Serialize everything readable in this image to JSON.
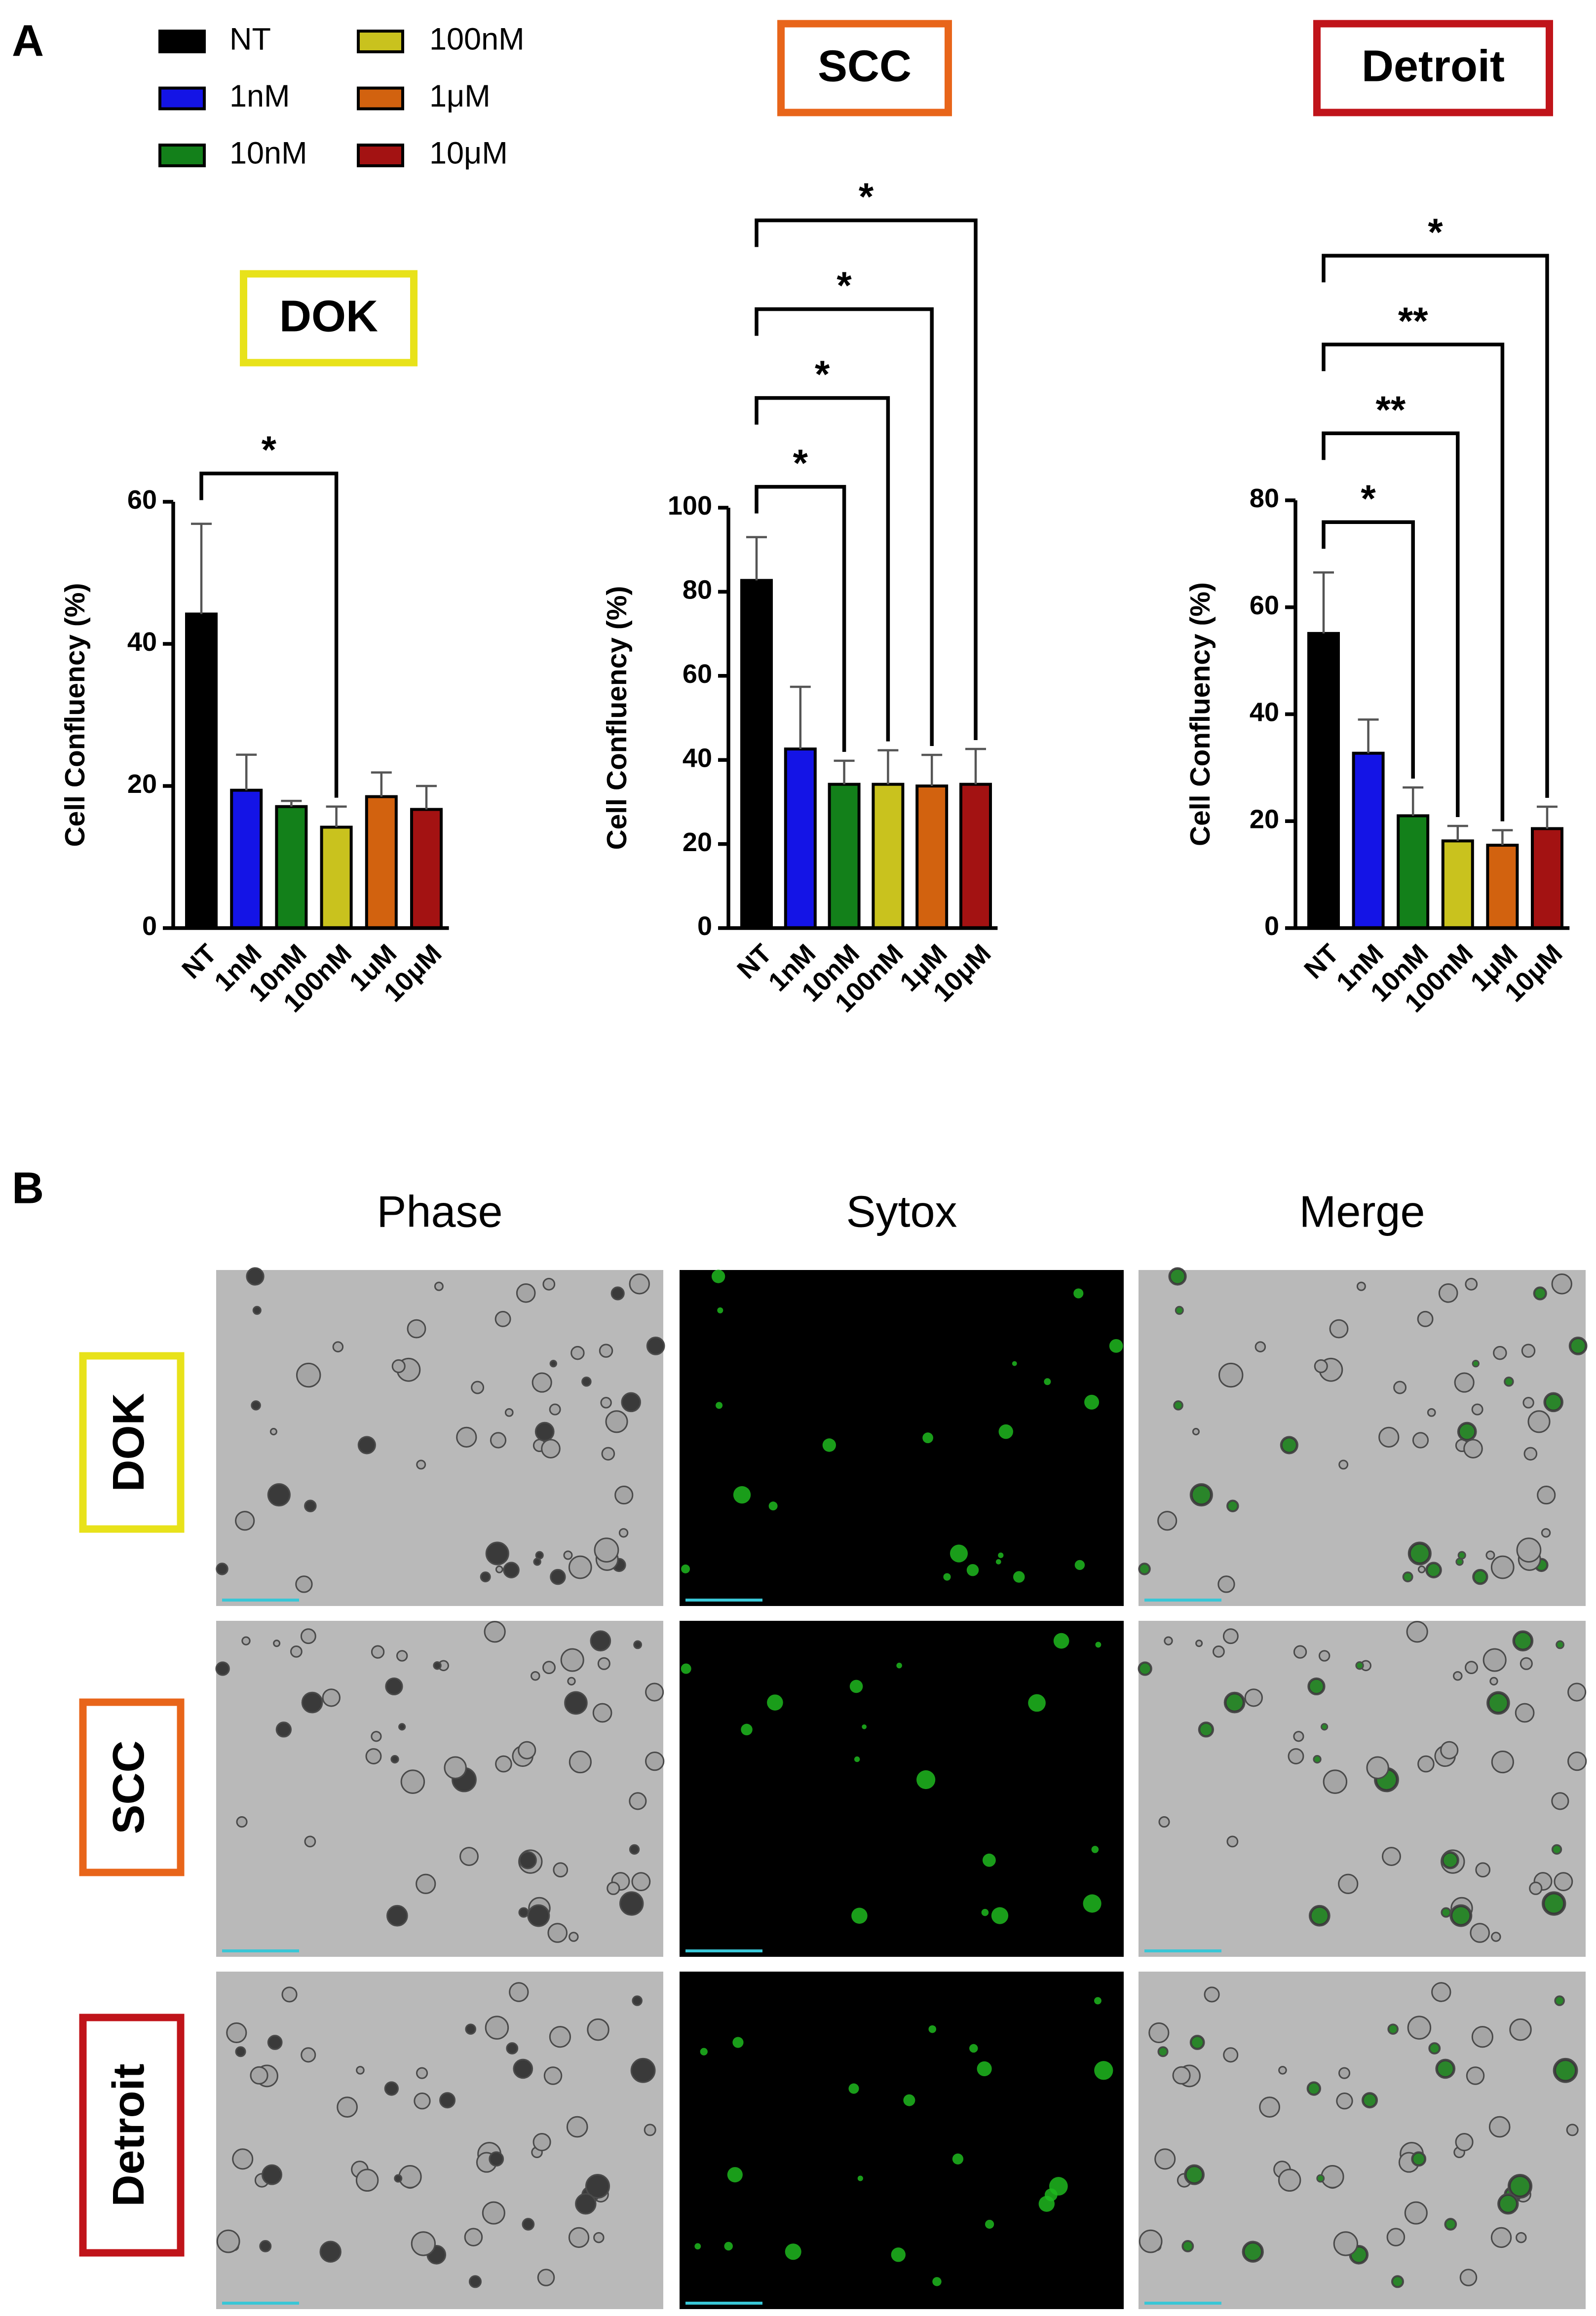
{
  "panel_labels": [
    "A",
    "B"
  ],
  "legend": {
    "entries": [
      {
        "name": "NT",
        "color": "#000000"
      },
      {
        "name": "1nM",
        "color": "#1414e6"
      },
      {
        "name": "10nM",
        "color": "#13801a"
      },
      {
        "name": "100nM",
        "color": "#c9c21e"
      },
      {
        "name": "1μM",
        "color": "#d2620f"
      },
      {
        "name": "10μM",
        "color": "#a31212"
      }
    ]
  },
  "chart_data": [
    {
      "type": "bar",
      "title": "DOK",
      "title_box_color": "#e8e21a",
      "y_label": "Cell Confluency (%)",
      "categories": [
        "NT",
        "1nM",
        "10nM",
        "100nM",
        "1uM",
        "10μM"
      ],
      "values": [
        44.2,
        19.4,
        17.1,
        14.2,
        18.5,
        16.7
      ],
      "errors": [
        12.7,
        5.0,
        0.8,
        2.9,
        3.4,
        3.3
      ],
      "colors": [
        "#000000",
        "#1414e6",
        "#13801a",
        "#c9c21e",
        "#d2620f",
        "#a31212"
      ],
      "ylim": [
        0,
        60
      ],
      "yticks": [
        0,
        20,
        40,
        60
      ],
      "comparisons": [
        {
          "pair": [
            "NT",
            "100nM"
          ],
          "label": "*"
        }
      ]
    },
    {
      "type": "bar",
      "title": "SCC",
      "title_box_color": "#e8651a",
      "y_label": "Cell Confluency (%)",
      "categories": [
        "NT",
        "1nM",
        "10nM",
        "100nM",
        "1μM",
        "10μM"
      ],
      "values": [
        82.7,
        42.6,
        34.2,
        34.2,
        33.8,
        34.2
      ],
      "errors": [
        10.3,
        14.8,
        5.6,
        8.1,
        7.4,
        8.4
      ],
      "colors": [
        "#000000",
        "#1414e6",
        "#13801a",
        "#c9c21e",
        "#d2620f",
        "#a31212"
      ],
      "ylim": [
        0,
        100
      ],
      "yticks": [
        0,
        20,
        40,
        60,
        80,
        100
      ],
      "comparisons": [
        {
          "pair": [
            "NT",
            "10nM"
          ],
          "label": "*"
        },
        {
          "pair": [
            "NT",
            "100nM"
          ],
          "label": "*"
        },
        {
          "pair": [
            "NT",
            "1μM"
          ],
          "label": "*"
        },
        {
          "pair": [
            "NT",
            "10μM"
          ],
          "label": "*"
        }
      ]
    },
    {
      "type": "bar",
      "title": "Detroit",
      "title_box_color": "#c0141a",
      "y_label": "Cell Confluency (%)",
      "categories": [
        "NT",
        "1nM",
        "10nM",
        "100nM",
        "1μM",
        "10μM"
      ],
      "values": [
        55.1,
        32.7,
        21.0,
        16.3,
        15.5,
        18.6
      ],
      "errors": [
        11.4,
        6.3,
        5.3,
        2.8,
        2.8,
        4.1
      ],
      "colors": [
        "#000000",
        "#1414e6",
        "#13801a",
        "#c9c21e",
        "#d2620f",
        "#a31212"
      ],
      "ylim": [
        0,
        80
      ],
      "yticks": [
        0,
        20,
        40,
        60,
        80
      ],
      "comparisons": [
        {
          "pair": [
            "NT",
            "10nM"
          ],
          "label": "*"
        },
        {
          "pair": [
            "NT",
            "100nM"
          ],
          "label": "**"
        },
        {
          "pair": [
            "NT",
            "1μM"
          ],
          "label": "**"
        },
        {
          "pair": [
            "NT",
            "10μM"
          ],
          "label": "*"
        }
      ]
    }
  ],
  "micrographs": {
    "columns": [
      "Phase",
      "Sytox",
      "Merge"
    ],
    "rows": [
      {
        "label": "DOK",
        "color": "#e8e21a"
      },
      {
        "label": "SCC",
        "color": "#e8651a"
      },
      {
        "label": "Detroit",
        "color": "#c0141a"
      }
    ]
  }
}
